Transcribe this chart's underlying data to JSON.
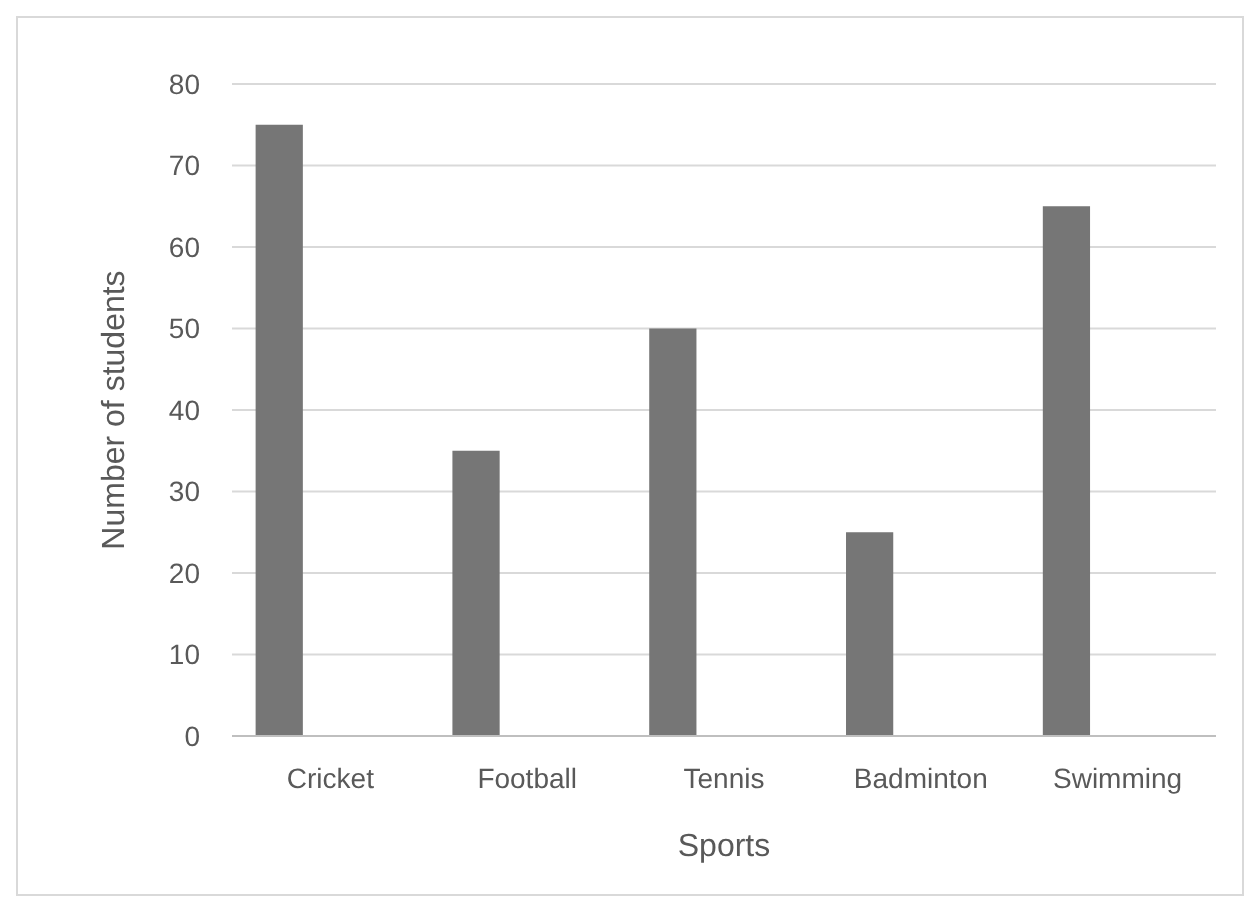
{
  "chart_data": {
    "type": "bar",
    "xlabel": "Sports",
    "ylabel": "Number of students",
    "categories": [
      "Cricket",
      "Football",
      "Tennis",
      "Badminton",
      "Swimming"
    ],
    "values": [
      75,
      35,
      50,
      25,
      65
    ],
    "color": "#767676",
    "ylim": [
      0,
      80
    ],
    "yticks": [
      0,
      10,
      20,
      30,
      40,
      50,
      60,
      70,
      80
    ],
    "grid": "y"
  }
}
